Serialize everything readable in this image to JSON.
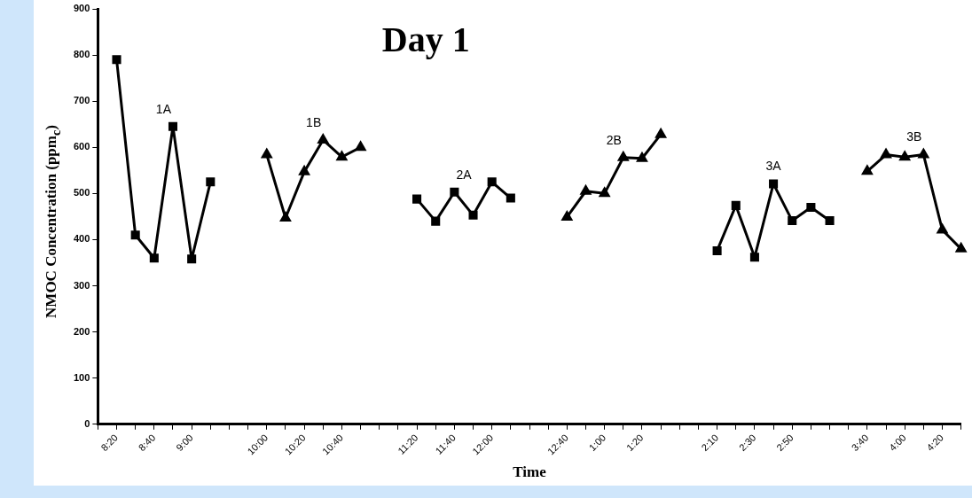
{
  "chart_data": {
    "type": "line",
    "title": "Day 1",
    "xlabel": "Time",
    "ylabel": "NMOC Concentration (ppm$_{c}$)",
    "categories": [
      null,
      "8:20",
      null,
      "8:40",
      null,
      "9:00",
      null,
      null,
      null,
      "10:00",
      null,
      "10:20",
      null,
      "10:40",
      null,
      null,
      null,
      "11:20",
      null,
      "11:40",
      null,
      "12:00",
      null,
      null,
      null,
      "12:40",
      null,
      "1:00",
      null,
      "1:20",
      null,
      null,
      null,
      "2:10",
      null,
      "2:30",
      null,
      "2:50",
      null,
      null,
      null,
      "3:40",
      null,
      "4:00",
      null,
      "4:20",
      null
    ],
    "ylim": [
      0,
      900
    ],
    "yticks": [
      0,
      100,
      200,
      300,
      400,
      500,
      600,
      700,
      800,
      900
    ],
    "grid": false,
    "series": [
      {
        "name": "1A",
        "color": "#000000",
        "marker": "square",
        "values": [
          null,
          790,
          410,
          360,
          645,
          358,
          525,
          null,
          null,
          null,
          null,
          null,
          null,
          null,
          null,
          null,
          null,
          null,
          null,
          null,
          null,
          null,
          null,
          null,
          null,
          null,
          null,
          null,
          null,
          null,
          null,
          null,
          null,
          null,
          null,
          null,
          null,
          null,
          null,
          null,
          null,
          null,
          null,
          null,
          null,
          null,
          null
        ]
      },
      {
        "name": "1B",
        "color": "#000000",
        "marker": "triangle",
        "values": [
          null,
          null,
          null,
          null,
          null,
          null,
          null,
          null,
          null,
          584,
          447,
          547,
          616,
          579,
          600,
          null,
          null,
          null,
          null,
          null,
          null,
          null,
          null,
          null,
          null,
          null,
          null,
          null,
          null,
          null,
          null,
          null,
          null,
          null,
          null,
          null,
          null,
          null,
          null,
          null,
          null,
          null,
          null,
          null,
          null,
          null,
          null
        ]
      },
      {
        "name": "2A",
        "color": "#000000",
        "marker": "square",
        "values": [
          null,
          null,
          null,
          null,
          null,
          null,
          null,
          null,
          null,
          null,
          null,
          null,
          null,
          null,
          null,
          null,
          null,
          488,
          440,
          503,
          453,
          525,
          490,
          null,
          null,
          null,
          null,
          null,
          null,
          null,
          null,
          null,
          null,
          null,
          null,
          null,
          null,
          null,
          null,
          null,
          null,
          null,
          null,
          null,
          null,
          null,
          null
        ]
      },
      {
        "name": "2B",
        "color": "#000000",
        "marker": "triangle",
        "values": [
          null,
          null,
          null,
          null,
          null,
          null,
          null,
          null,
          null,
          null,
          null,
          null,
          null,
          null,
          null,
          null,
          null,
          null,
          null,
          null,
          null,
          null,
          null,
          null,
          null,
          449,
          505,
          500,
          578,
          576,
          628,
          null,
          null,
          null,
          null,
          null,
          null,
          null,
          null,
          null,
          null,
          null,
          null,
          null,
          null,
          null,
          null
        ]
      },
      {
        "name": "3A",
        "color": "#000000",
        "marker": "square",
        "values": [
          null,
          null,
          null,
          null,
          null,
          null,
          null,
          null,
          null,
          null,
          null,
          null,
          null,
          null,
          null,
          null,
          null,
          null,
          null,
          null,
          null,
          null,
          null,
          null,
          null,
          null,
          null,
          null,
          null,
          null,
          null,
          null,
          null,
          376,
          474,
          362,
          521,
          441,
          470,
          441,
          null,
          null,
          null,
          null,
          null,
          null,
          null
        ]
      },
      {
        "name": "3B",
        "color": "#000000",
        "marker": "triangle",
        "values": [
          null,
          null,
          null,
          null,
          null,
          null,
          null,
          null,
          null,
          null,
          null,
          null,
          null,
          null,
          null,
          null,
          null,
          null,
          null,
          null,
          null,
          null,
          null,
          null,
          null,
          null,
          null,
          null,
          null,
          null,
          null,
          null,
          null,
          null,
          null,
          null,
          null,
          null,
          null,
          null,
          null,
          548,
          584,
          579,
          584,
          421,
          380
        ]
      }
    ]
  }
}
